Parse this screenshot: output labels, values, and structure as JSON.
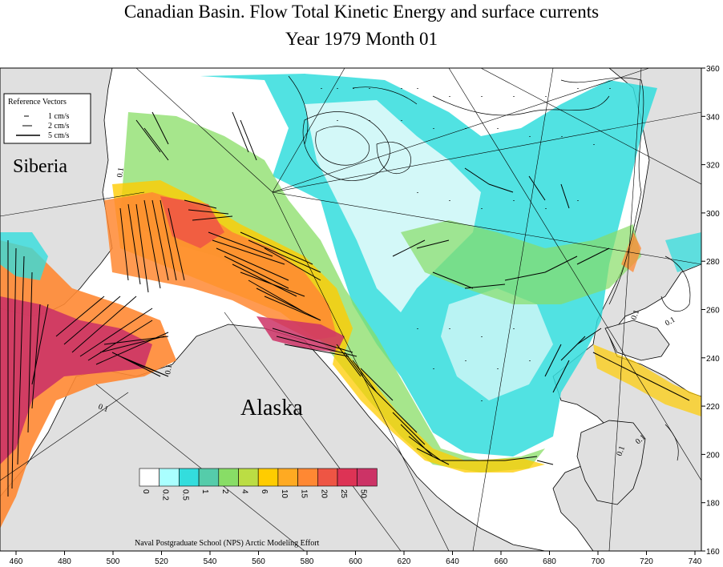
{
  "title": {
    "line1": "Canadian Basin. Flow Total Kinetic Energy and surface currents",
    "line2": "Year 1979   Month  01"
  },
  "labels": {
    "siberia": "Siberia",
    "alaska": "Alaska",
    "credit": "Naval Postgraduate School (NPS) Arctic Modeling Effort",
    "contour_labels": [
      "0.1",
      "0.1",
      "0.1",
      "0.1",
      "0.1",
      "0.1",
      "0.1"
    ]
  },
  "reference_vectors": {
    "title": "Reference Vectors",
    "items": [
      "1 cm/s",
      "2 cm/s",
      "5 cm/s"
    ]
  },
  "axes": {
    "x_ticks": [
      "460",
      "480",
      "500",
      "520",
      "540",
      "560",
      "580",
      "600",
      "620",
      "640",
      "660",
      "680",
      "700",
      "720",
      "740"
    ],
    "y_ticks": [
      "360",
      "340",
      "320",
      "300",
      "280",
      "260",
      "240",
      "220",
      "200",
      "180",
      "160"
    ]
  },
  "legend": {
    "labels": [
      "0",
      "0.2",
      "0.5",
      "1",
      "2",
      "4",
      "6",
      "10",
      "15",
      "20",
      "25",
      "50"
    ],
    "colors": [
      "#ffffff",
      "#aaffff",
      "#33dddd",
      "#55ccaa",
      "#88dd66",
      "#bbdd44",
      "#ffcc00",
      "#ffaa22",
      "#ff8833",
      "#ee5544",
      "#dd3355",
      "#cc3366"
    ]
  },
  "colors": {
    "land": "#e0e0e0",
    "low_energy": "#33dddd",
    "high_energy": "#cc3366"
  }
}
